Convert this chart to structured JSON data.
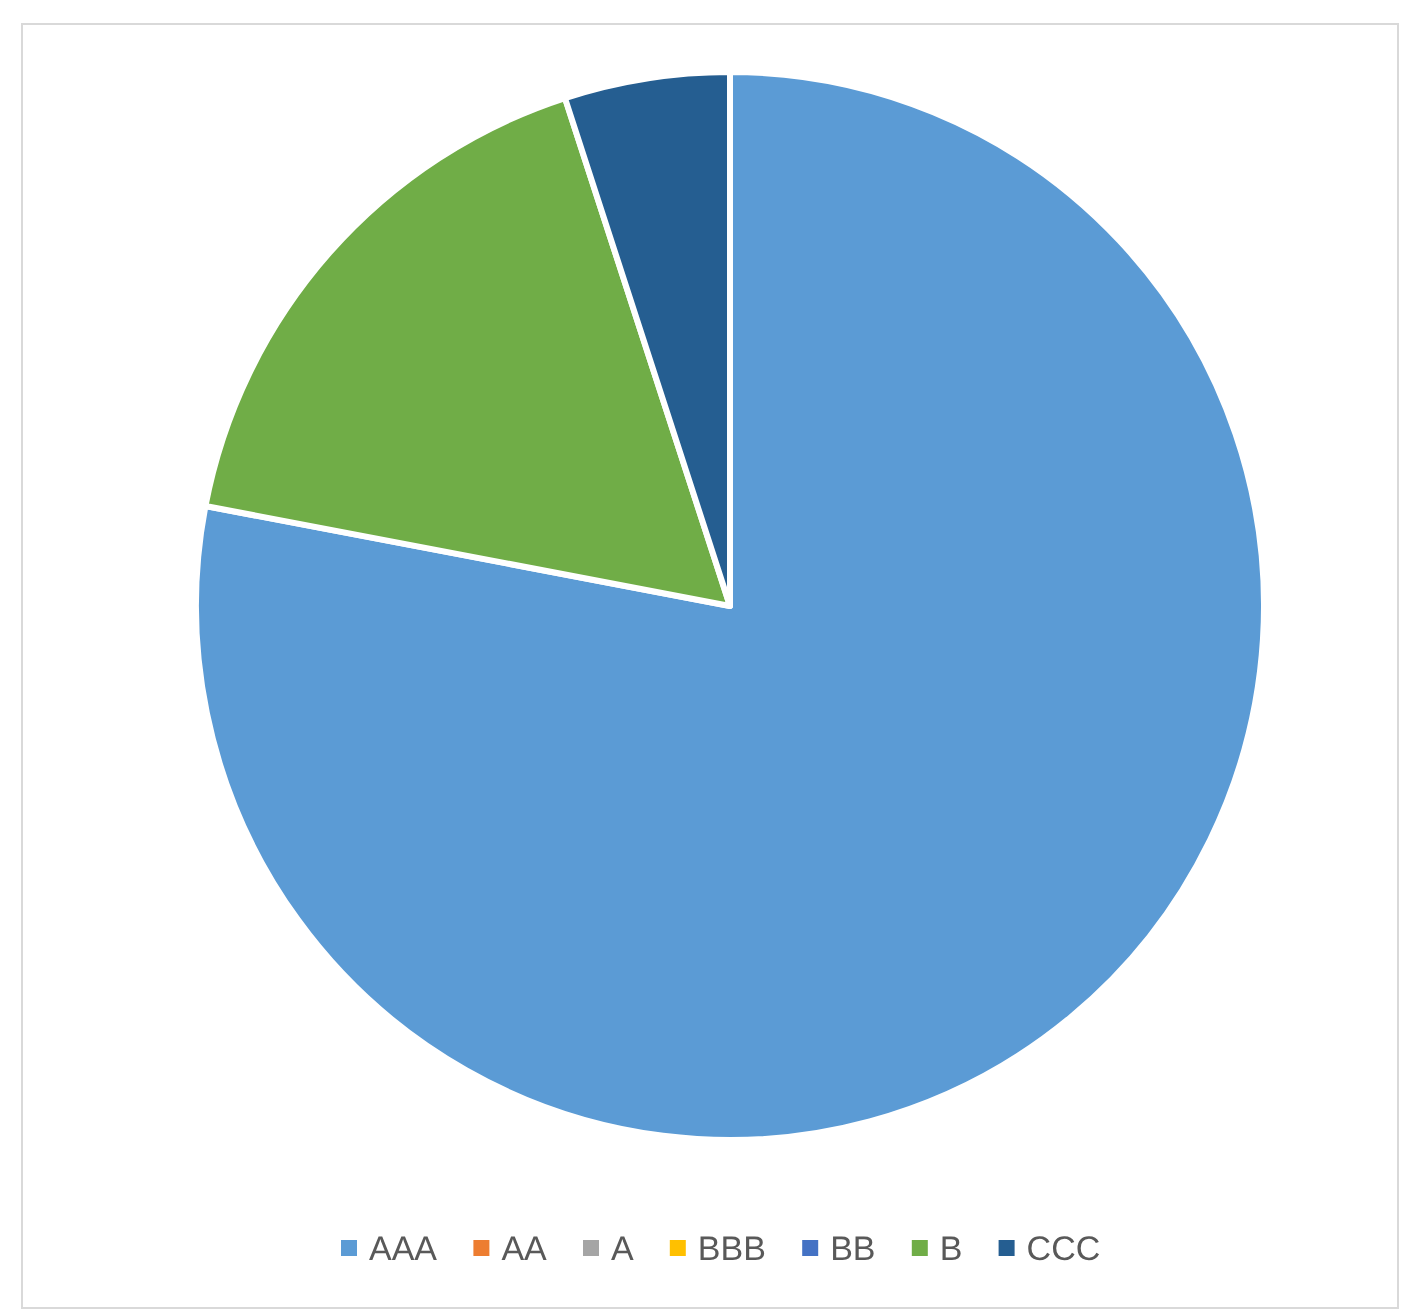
{
  "chart_data": {
    "type": "pie",
    "categories": [
      "AAA",
      "AA",
      "A",
      "BBB",
      "BB",
      "B",
      "CCC"
    ],
    "values": [
      78,
      0,
      0,
      0,
      0,
      17,
      5
    ],
    "colors": [
      "#5b9bd5",
      "#ed7d31",
      "#a5a5a5",
      "#ffc000",
      "#4472c4",
      "#70ad47",
      "#255e91"
    ],
    "legend": "bottom"
  }
}
